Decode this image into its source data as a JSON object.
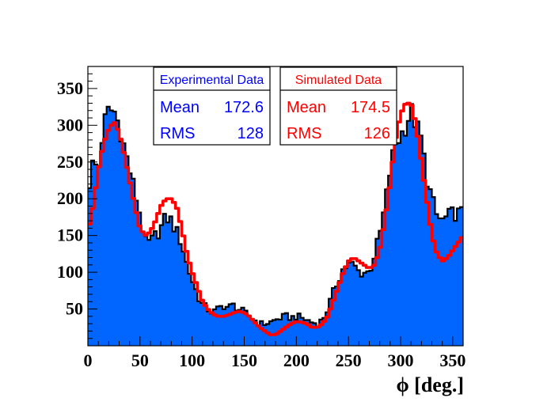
{
  "chart_data": {
    "type": "histogram",
    "xlabel": "ϕ [deg.]",
    "ylabel": "",
    "xlim": [
      0,
      360
    ],
    "ylim": [
      0,
      380
    ],
    "x_ticks": [
      0,
      50,
      100,
      150,
      200,
      250,
      300,
      350
    ],
    "y_ticks": [
      50,
      100,
      150,
      200,
      250,
      300,
      350
    ],
    "grid": false,
    "bin_width": 3,
    "colors": {
      "experimental_fill": "#0066ff",
      "experimental_line": "#000000",
      "simulated_line": "#ff0000",
      "experimental_text": "#0000ff",
      "simulated_text": "#ff0000"
    },
    "series": [
      {
        "name": "Experimental Data",
        "style": "filled-histogram",
        "x": [
          0,
          5,
          10,
          15,
          20,
          25,
          30,
          35,
          40,
          45,
          50,
          55,
          60,
          65,
          70,
          75,
          80,
          85,
          90,
          95,
          100,
          105,
          110,
          115,
          120,
          125,
          130,
          135,
          140,
          145,
          150,
          155,
          160,
          165,
          170,
          175,
          180,
          185,
          190,
          195,
          200,
          205,
          210,
          215,
          220,
          225,
          230,
          235,
          240,
          245,
          250,
          255,
          260,
          265,
          270,
          275,
          280,
          285,
          290,
          295,
          300,
          305,
          310,
          315,
          320,
          325,
          330,
          335,
          340,
          345,
          350,
          355,
          360
        ],
        "values": [
          210,
          250,
          240,
          300,
          320,
          320,
          300,
          270,
          240,
          210,
          180,
          140,
          140,
          150,
          160,
          175,
          170,
          155,
          140,
          110,
          90,
          70,
          55,
          50,
          45,
          50,
          55,
          52,
          55,
          50,
          45,
          40,
          35,
          30,
          30,
          32,
          35,
          38,
          40,
          38,
          40,
          38,
          35,
          32,
          30,
          35,
          50,
          70,
          90,
          105,
          110,
          110,
          100,
          100,
          100,
          125,
          150,
          190,
          240,
          275,
          285,
          300,
          320,
          300,
          280,
          230,
          200,
          175,
          170,
          175,
          180,
          180,
          180
        ]
      },
      {
        "name": "Simulated Data",
        "style": "line-histogram",
        "x": [
          0,
          5,
          10,
          15,
          20,
          25,
          30,
          35,
          40,
          45,
          50,
          55,
          60,
          65,
          70,
          75,
          80,
          85,
          90,
          95,
          100,
          105,
          110,
          115,
          120,
          125,
          130,
          135,
          140,
          145,
          150,
          155,
          160,
          165,
          170,
          175,
          180,
          185,
          190,
          195,
          200,
          205,
          210,
          215,
          220,
          225,
          230,
          235,
          240,
          245,
          250,
          255,
          260,
          265,
          270,
          275,
          280,
          285,
          290,
          295,
          300,
          305,
          310,
          315,
          320,
          325,
          330,
          335,
          340,
          345,
          350,
          355,
          360
        ],
        "values": [
          155,
          190,
          240,
          275,
          295,
          305,
          290,
          260,
          225,
          190,
          160,
          150,
          155,
          170,
          190,
          200,
          200,
          190,
          160,
          125,
          100,
          80,
          60,
          50,
          43,
          40,
          40,
          42,
          45,
          47,
          45,
          40,
          32,
          25,
          20,
          15,
          15,
          20,
          25,
          30,
          33,
          32,
          30,
          25,
          25,
          30,
          40,
          60,
          80,
          100,
          115,
          120,
          115,
          110,
          105,
          110,
          130,
          170,
          220,
          280,
          315,
          330,
          330,
          300,
          250,
          200,
          150,
          125,
          115,
          120,
          130,
          140,
          150
        ]
      }
    ],
    "stat_boxes": [
      {
        "title": "Experimental Data",
        "rows": [
          {
            "label": "Mean",
            "value": "172.6"
          },
          {
            "label": "RMS",
            "value": "128"
          }
        ]
      },
      {
        "title": "Simulated Data",
        "rows": [
          {
            "label": "Mean",
            "value": "174.5"
          },
          {
            "label": "RMS",
            "value": "126"
          }
        ]
      }
    ]
  }
}
